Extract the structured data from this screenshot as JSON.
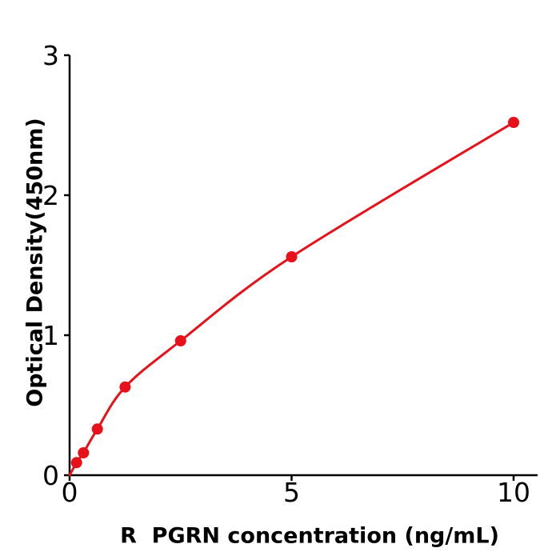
{
  "figure": {
    "background_color": "#ffffff",
    "kind": "ELISA standard curve"
  },
  "chart_data": {
    "type": "scatter",
    "title": "",
    "xlabel": "R  PGRN concentration (ng/mL)",
    "ylabel": "Optical Density(450nm)",
    "x": [
      0.156,
      0.3125,
      0.625,
      1.25,
      2.5,
      5,
      10
    ],
    "y": [
      0.09,
      0.16,
      0.33,
      0.63,
      0.96,
      1.56,
      2.52
    ],
    "curve_through_origin": true,
    "x_ticks": [
      0,
      5,
      10
    ],
    "x_tick_labels": [
      "0",
      "5",
      "10"
    ],
    "y_ticks": [
      0,
      1,
      2,
      3
    ],
    "y_tick_labels": [
      "0",
      "1",
      "2",
      "3"
    ],
    "xlim": [
      0,
      10.54
    ],
    "ylim": [
      0,
      3
    ],
    "grid": false,
    "legend": null,
    "series_color": "#e8111a",
    "point_color": "#e8111a",
    "axis_color": "#000000",
    "tick_label_color": "#000000"
  }
}
